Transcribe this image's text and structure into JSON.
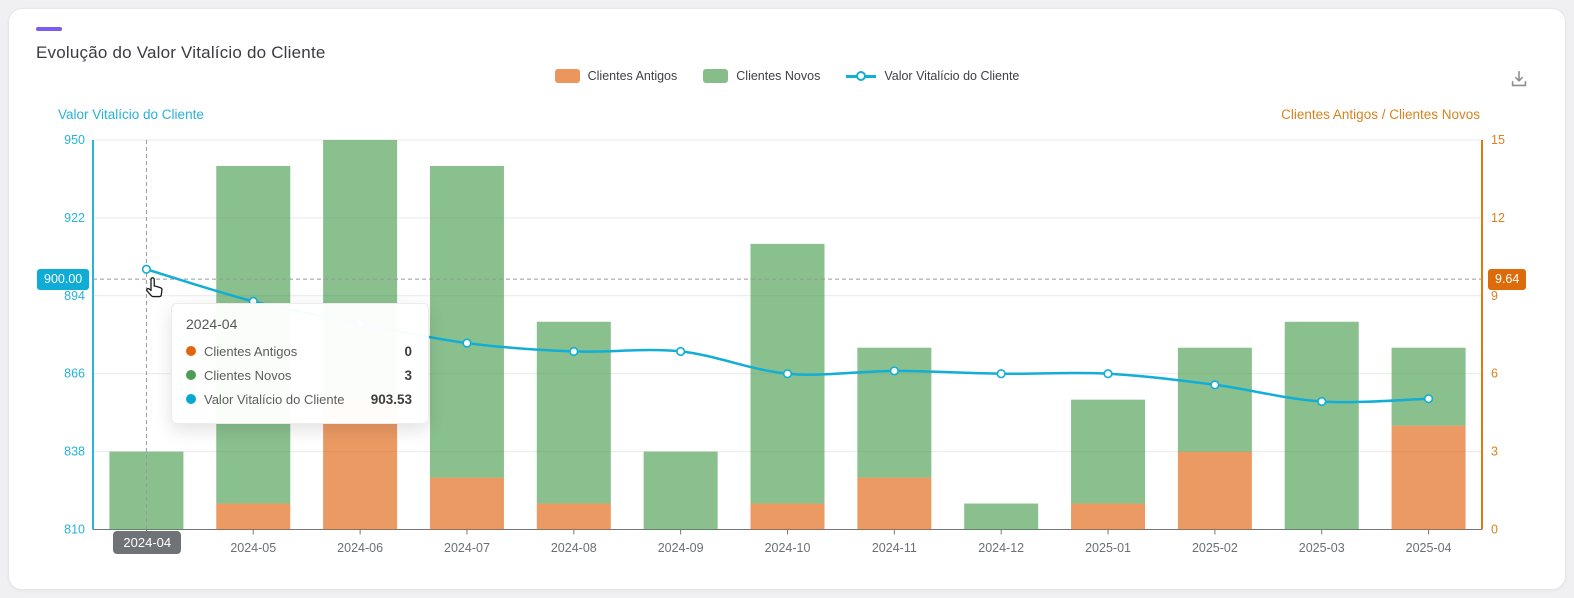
{
  "header": {
    "title": "Evolução do Valor Vitalício do Cliente"
  },
  "card": {
    "accent_color": "#7a5cf0"
  },
  "legend": {
    "items": [
      {
        "label": "Clientes Antigos",
        "type": "bar",
        "color": "#e2640f"
      },
      {
        "label": "Clientes Novos",
        "type": "bar",
        "color": "#4c9e52"
      },
      {
        "label": "Valor Vitalício do Cliente",
        "type": "line",
        "color": "#12aed6"
      }
    ]
  },
  "toolbar": {
    "download_tooltip": "download"
  },
  "axes": {
    "left": {
      "name": "Valor Vitalício do Cliente",
      "text_color": "#27b2d8",
      "line_color": "#2ab4da",
      "ticks": [
        "950",
        "922",
        "894",
        "866",
        "838",
        "810"
      ]
    },
    "right": {
      "name": "Clientes Antigos / Clientes Novos",
      "text_color": "#d9821f",
      "line_color": "#e2790f",
      "ticks": [
        "15",
        "12",
        "9",
        "6",
        "3",
        "0"
      ]
    },
    "x": {
      "text_color": "#6b6f75",
      "line_color": "#73767c"
    }
  },
  "chart_data": {
    "type": "bar",
    "title": "Evolução do Valor Vitalício do Cliente",
    "categories": [
      "2024-04",
      "2024-05",
      "2024-06",
      "2024-07",
      "2024-08",
      "2024-09",
      "2024-10",
      "2024-11",
      "2024-12",
      "2025-01",
      "2025-02",
      "2025-03",
      "2025-04"
    ],
    "series": [
      {
        "name": "Clientes Antigos",
        "type": "bar",
        "stack": "clients",
        "axis": "right",
        "color": "#e2640f",
        "opacity": 0.65,
        "values": [
          0,
          1,
          5,
          2,
          1,
          0,
          1,
          2,
          0,
          1,
          3,
          0,
          4
        ]
      },
      {
        "name": "Clientes Novos",
        "type": "bar",
        "stack": "clients",
        "axis": "right",
        "color": "#4c9e52",
        "opacity": 0.65,
        "values": [
          3,
          13,
          10,
          12,
          7,
          3,
          10,
          5,
          1,
          4,
          4,
          8,
          3
        ]
      },
      {
        "name": "Valor Vitalício do Cliente",
        "type": "line",
        "axis": "left",
        "color": "#12aed6",
        "values": [
          903.53,
          892,
          884,
          877,
          874,
          874,
          866,
          867,
          866,
          866,
          862,
          856,
          857
        ]
      }
    ],
    "left_axis": {
      "label": "Valor Vitalício do Cliente",
      "min": 810,
      "max": 950,
      "tick_step": 28
    },
    "right_axis": {
      "label": "Clientes Antigos / Clientes Novos",
      "min": 0,
      "max": 15,
      "tick_step": 3
    },
    "grid": "horizontal",
    "legend_position": "top"
  },
  "crosshair": {
    "category": "2024-04",
    "left_label": "900.00",
    "right_label": "9.64",
    "x_label": "2024-04",
    "left_value": 900,
    "left_badge_color": "#0fadd5",
    "right_badge_color": "#dd6b0a",
    "x_badge_color": "#6f7277"
  },
  "tooltip": {
    "title": "2024-04",
    "rows": [
      {
        "label": "Clientes Antigos",
        "value": "0",
        "color": "#e2640f"
      },
      {
        "label": "Clientes Novos",
        "value": "3",
        "color": "#4c9e52"
      },
      {
        "label": "Valor Vitalício do Cliente",
        "value": "903.53",
        "color": "#04a8d0"
      }
    ]
  },
  "colors": {
    "grid_line": "#e8e9ec",
    "crosshair": "#999999"
  }
}
